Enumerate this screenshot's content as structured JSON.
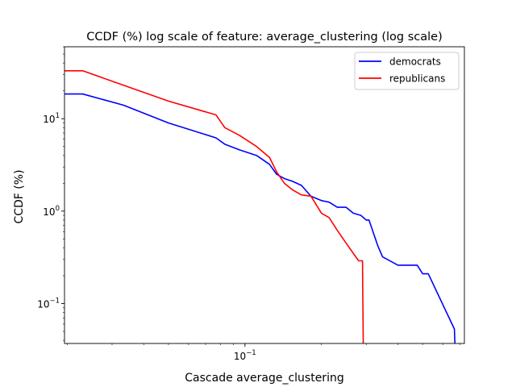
{
  "chart_data": {
    "type": "line",
    "title": "CCDF (%) log scale of feature: average_clustering (log scale)",
    "xlabel": "Cascade average_clustering",
    "ylabel": "CCDF (%)",
    "xscale": "log",
    "yscale": "log",
    "xlim": [
      0.0195,
      0.73
    ],
    "ylim": [
      0.037,
      60
    ],
    "x_tick_labels": [
      {
        "value": 0.1,
        "label": "10",
        "exp": "−1"
      }
    ],
    "y_tick_labels": [
      {
        "value": 0.1,
        "label": "10",
        "exp": "−1"
      },
      {
        "value": 1,
        "label": "10",
        "exp": "0"
      },
      {
        "value": 10,
        "label": "10",
        "exp": "1"
      }
    ],
    "grid": false,
    "legend_position": "top-right",
    "series": [
      {
        "name": "democrats",
        "color": "#0000ff",
        "x": [
          0.0195,
          0.023,
          0.0333,
          0.05,
          0.0769,
          0.0833,
          0.0952,
          0.1111,
          0.125,
          0.1333,
          0.1429,
          0.1538,
          0.1667,
          0.1818,
          0.2,
          0.2143,
          0.2308,
          0.25,
          0.2667,
          0.2857,
          0.3,
          0.3077,
          0.3333,
          0.3478,
          0.4,
          0.42,
          0.4762,
          0.5,
          0.5263,
          0.6667,
          0.67
        ],
        "y": [
          18.5,
          18.5,
          14.0,
          9.0,
          6.2,
          5.3,
          4.6,
          4.0,
          3.2,
          2.5,
          2.25,
          2.1,
          1.9,
          1.45,
          1.3,
          1.25,
          1.1,
          1.1,
          0.95,
          0.9,
          0.8,
          0.8,
          0.42,
          0.32,
          0.26,
          0.26,
          0.26,
          0.21,
          0.21,
          0.053,
          0.037
        ]
      },
      {
        "name": "republicans",
        "color": "#ff0000",
        "x": [
          0.0195,
          0.023,
          0.0333,
          0.05,
          0.0769,
          0.0833,
          0.0952,
          0.1111,
          0.125,
          0.1333,
          0.1429,
          0.1538,
          0.1667,
          0.1818,
          0.2,
          0.2143,
          0.2308,
          0.25,
          0.2667,
          0.28,
          0.29,
          0.292
        ],
        "y": [
          33.0,
          33.0,
          23.0,
          15.5,
          11.0,
          8.0,
          6.6,
          5.0,
          3.8,
          2.65,
          2.0,
          1.7,
          1.5,
          1.45,
          0.95,
          0.85,
          0.62,
          0.45,
          0.35,
          0.29,
          0.29,
          0.037
        ]
      }
    ]
  }
}
